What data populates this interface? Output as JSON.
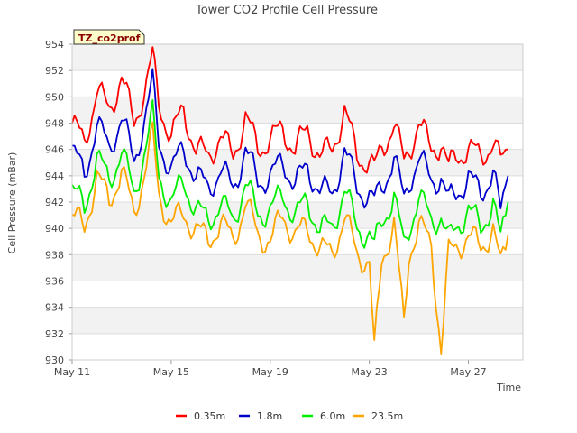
{
  "chart_data": {
    "type": "line",
    "title": "Tower CO2 Profile Cell Pressure",
    "xlabel": "Time",
    "ylabel": "Cell Pressure (mBar)",
    "ylim": [
      930,
      954
    ],
    "xlim": [
      0,
      18.2
    ],
    "yticks": [
      930,
      932,
      934,
      936,
      938,
      940,
      942,
      944,
      946,
      948,
      950,
      952,
      954
    ],
    "xticks": [
      {
        "value": 0,
        "label": "May 11"
      },
      {
        "value": 4,
        "label": "May 15"
      },
      {
        "value": 8,
        "label": "May 19"
      },
      {
        "value": 12,
        "label": "May 23"
      },
      {
        "value": 16,
        "label": "May 27"
      }
    ],
    "grid": true,
    "legend_position": "bottom",
    "site_tag": "TZ_co2prof",
    "colors": {
      "background_band": "#f2f2f2",
      "grid": "#dddddd",
      "axis": "#cccccc",
      "tag_fill": "#ffffcc"
    },
    "x": [
      0,
      0.5,
      1,
      1.5,
      2,
      2.5,
      3,
      3.25,
      3.5,
      4,
      4.5,
      5,
      5.5,
      6,
      6.5,
      7,
      7.5,
      8,
      8.5,
      9,
      9.5,
      10,
      10.5,
      11,
      11.5,
      12,
      12.2,
      12.5,
      13,
      13.4,
      13.6,
      14,
      14.5,
      14.9,
      15.2,
      15.5,
      16,
      16.5,
      17,
      17.3,
      17.6
    ],
    "series": [
      {
        "name": "0.35m",
        "color": "#ff0000",
        "values": [
          948,
          946.5,
          950.5,
          949,
          951.5,
          948,
          951,
          953,
          949.5,
          947,
          949,
          946,
          945.5,
          947,
          945.5,
          948.5,
          946,
          946.8,
          947.5,
          946,
          947.5,
          945.5,
          946,
          949,
          945.5,
          945,
          944.5,
          946,
          948,
          945,
          946,
          948,
          946,
          946.5,
          944.5,
          945.5,
          946,
          945.5,
          946.5,
          945,
          946
        ]
      },
      {
        "name": "1.8m",
        "color": "#0000cc",
        "values": [
          946,
          944,
          948,
          946,
          948.5,
          945,
          949,
          951,
          946.5,
          944.5,
          946,
          944,
          943,
          944.5,
          943,
          946,
          943.5,
          944,
          945,
          943.5,
          944.5,
          943,
          942.5,
          946,
          943,
          942.5,
          942,
          943,
          945.5,
          942,
          943.5,
          945.5,
          943.5,
          944,
          942,
          942.5,
          944,
          942.5,
          944.5,
          941,
          944
        ]
      },
      {
        "name": "6.0m",
        "color": "#00ee00",
        "values": [
          943,
          941.5,
          945.5,
          943.5,
          946,
          942.5,
          946.5,
          948.5,
          944,
          942,
          943.5,
          941.5,
          940.5,
          942,
          940.5,
          943.5,
          941,
          941.5,
          942.5,
          941,
          942,
          940,
          940,
          943,
          940,
          939.5,
          938.5,
          940.5,
          942.5,
          938.5,
          940,
          942.5,
          940.5,
          941,
          939,
          940,
          941.5,
          940,
          942,
          939,
          942
        ]
      },
      {
        "name": "23.5m",
        "color": "#ffa500",
        "values": [
          941,
          940,
          944,
          942,
          944.5,
          941,
          945,
          947,
          942.5,
          940.5,
          941,
          940,
          939,
          940.5,
          939,
          942,
          939.5,
          939,
          941,
          939.5,
          940,
          938.5,
          938,
          941,
          938,
          937.5,
          930.5,
          937.5,
          940.5,
          932.5,
          938,
          940.5,
          938.5,
          931,
          938,
          938.5,
          939.5,
          938.5,
          940,
          937,
          939.5
        ]
      }
    ]
  }
}
